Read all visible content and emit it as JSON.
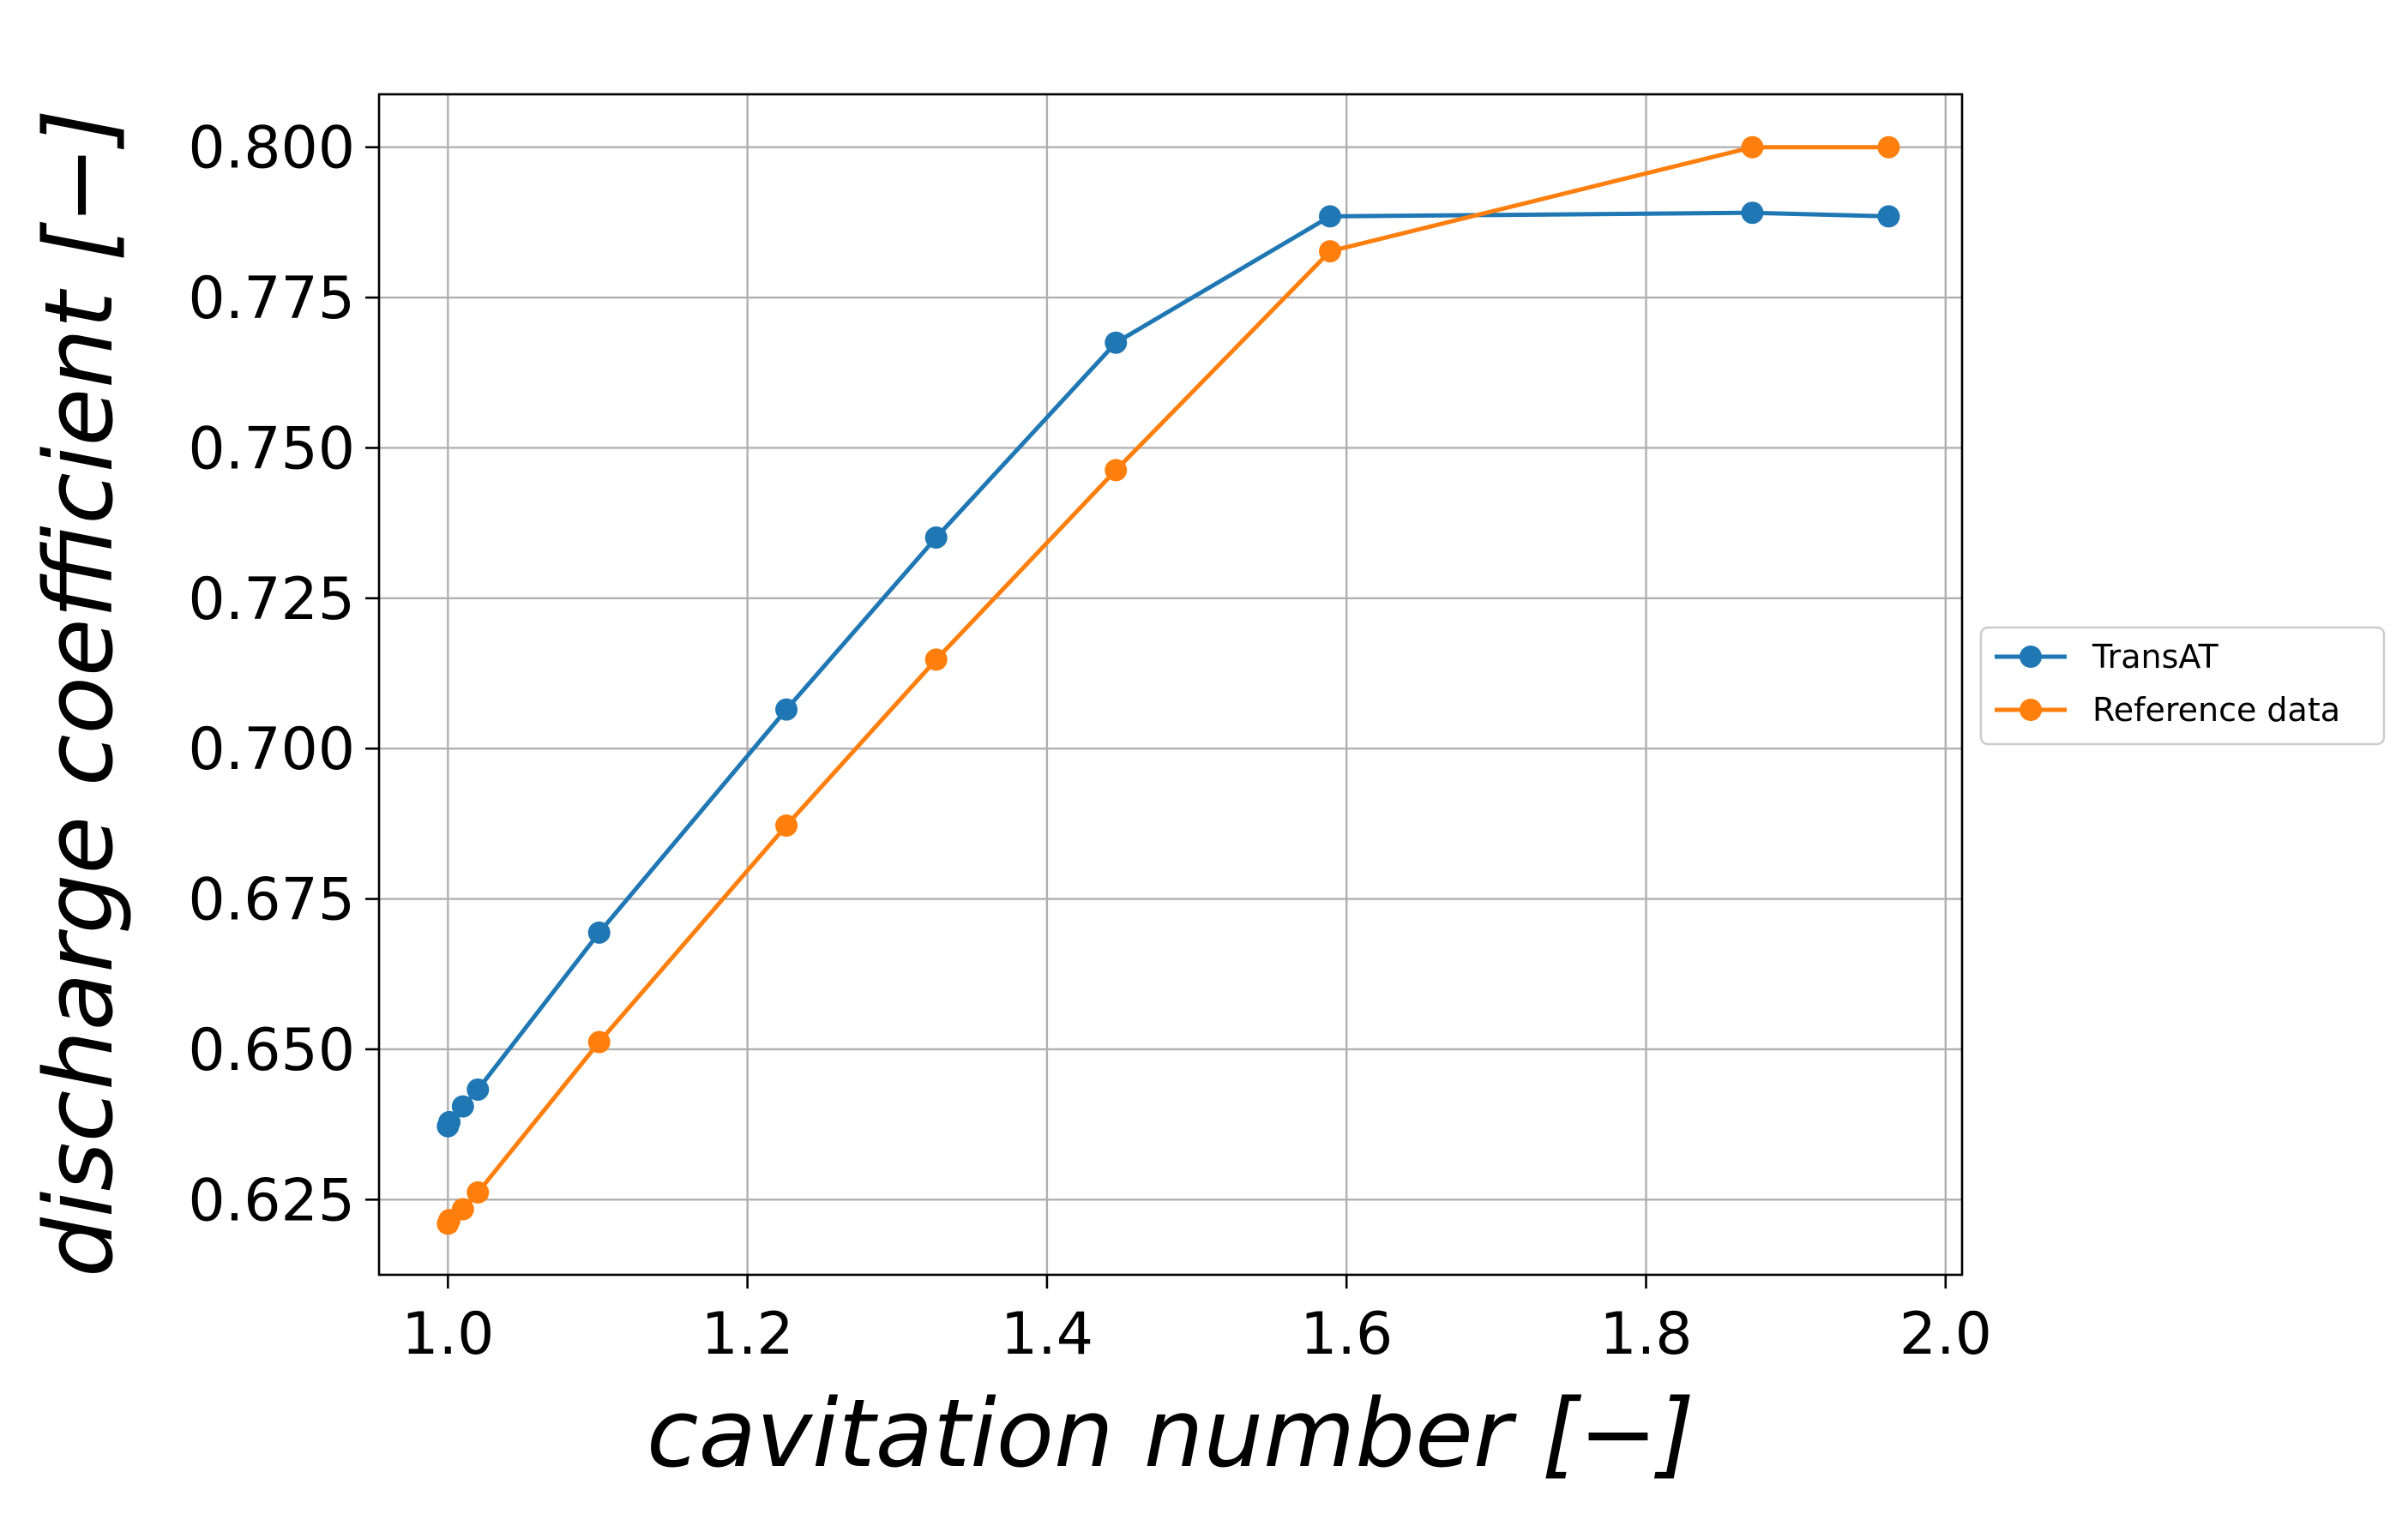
{
  "chart_data": {
    "type": "line",
    "xlabel": "cavitation number [−]",
    "ylabel": "discharge coefficient [−]",
    "xlim": [
      0.954,
      2.011
    ],
    "ylim": [
      0.6125,
      0.8088
    ],
    "xticks": [
      1.0,
      1.2,
      1.4,
      1.6,
      1.8,
      2.0
    ],
    "xtick_labels": [
      "1.0",
      "1.2",
      "1.4",
      "1.6",
      "1.8",
      "2.0"
    ],
    "yticks": [
      0.625,
      0.65,
      0.675,
      0.7,
      0.725,
      0.75,
      0.775,
      0.8
    ],
    "ytick_labels": [
      "0.625",
      "0.650",
      "0.675",
      "0.700",
      "0.725",
      "0.750",
      "0.775",
      "0.800"
    ],
    "grid": true,
    "legend_position": "right, outside plot",
    "series": [
      {
        "name": "TransAT",
        "color": "#1f77b4",
        "marker": "circle",
        "x": [
          1.0,
          1.001,
          1.01,
          1.02,
          1.101,
          1.226,
          1.326,
          1.446,
          1.589,
          1.871,
          1.962
        ],
        "y": [
          0.6372,
          0.6379,
          0.6405,
          0.6433,
          0.6694,
          0.7065,
          0.7351,
          0.7675,
          0.7885,
          0.7891,
          0.7885
        ]
      },
      {
        "name": "Reference data",
        "color": "#ff7f0e",
        "marker": "circle",
        "x": [
          1.0,
          1.001,
          1.01,
          1.02,
          1.101,
          1.226,
          1.326,
          1.446,
          1.589,
          1.871,
          1.962
        ],
        "y": [
          0.621,
          0.6216,
          0.6234,
          0.6262,
          0.6512,
          0.6872,
          0.7148,
          0.7463,
          0.7827,
          0.8,
          0.8
        ]
      }
    ]
  }
}
